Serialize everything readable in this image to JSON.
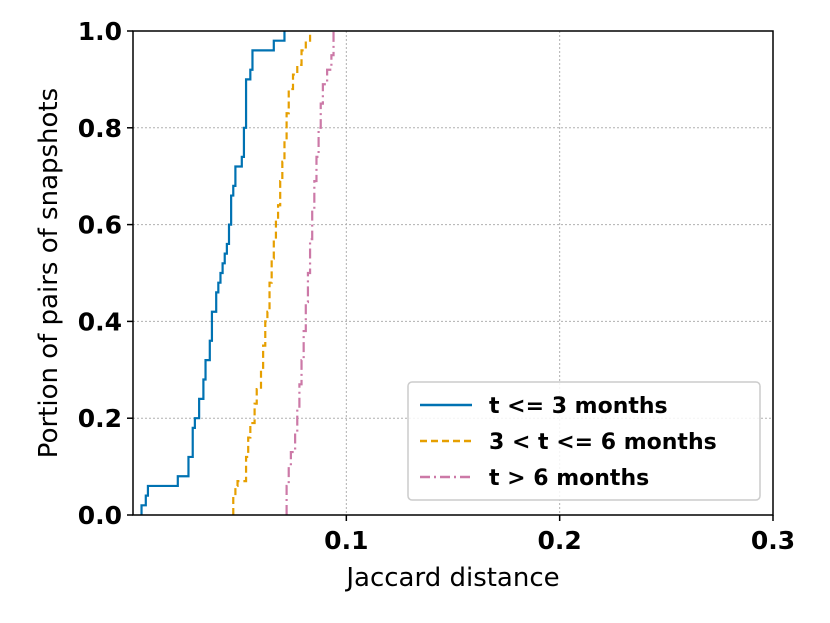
{
  "chart_data": {
    "type": "line",
    "subtype": "step-cdf",
    "title": "",
    "xlabel": "Jaccard distance",
    "ylabel": "Portion of pairs of snapshots",
    "xlim": [
      0.0,
      0.3
    ],
    "ylim": [
      0.0,
      1.0
    ],
    "xticks": [
      0.1,
      0.2,
      0.3
    ],
    "xtick_labels": [
      "0.1",
      "0.2",
      "0.3"
    ],
    "yticks": [
      0.0,
      0.2,
      0.4,
      0.6,
      0.8,
      1.0
    ],
    "ytick_labels": [
      "0.0",
      "0.2",
      "0.4",
      "0.6",
      "0.8",
      "1.0"
    ],
    "grid": true,
    "legend_position": "lower-right",
    "series": [
      {
        "name": "t <= 3 months",
        "color": "#0072b2",
        "dash": "solid",
        "points": [
          [
            0.004,
            0.0
          ],
          [
            0.004,
            0.02
          ],
          [
            0.006,
            0.02
          ],
          [
            0.006,
            0.04
          ],
          [
            0.007,
            0.04
          ],
          [
            0.007,
            0.06
          ],
          [
            0.021,
            0.06
          ],
          [
            0.021,
            0.08
          ],
          [
            0.026,
            0.08
          ],
          [
            0.026,
            0.12
          ],
          [
            0.028,
            0.12
          ],
          [
            0.028,
            0.18
          ],
          [
            0.029,
            0.18
          ],
          [
            0.029,
            0.2
          ],
          [
            0.031,
            0.2
          ],
          [
            0.031,
            0.24
          ],
          [
            0.033,
            0.24
          ],
          [
            0.033,
            0.28
          ],
          [
            0.034,
            0.28
          ],
          [
            0.034,
            0.32
          ],
          [
            0.036,
            0.32
          ],
          [
            0.036,
            0.36
          ],
          [
            0.037,
            0.36
          ],
          [
            0.037,
            0.42
          ],
          [
            0.039,
            0.42
          ],
          [
            0.039,
            0.46
          ],
          [
            0.04,
            0.46
          ],
          [
            0.04,
            0.48
          ],
          [
            0.041,
            0.48
          ],
          [
            0.041,
            0.5
          ],
          [
            0.042,
            0.5
          ],
          [
            0.042,
            0.52
          ],
          [
            0.043,
            0.52
          ],
          [
            0.043,
            0.54
          ],
          [
            0.044,
            0.54
          ],
          [
            0.044,
            0.56
          ],
          [
            0.045,
            0.56
          ],
          [
            0.045,
            0.6
          ],
          [
            0.046,
            0.6
          ],
          [
            0.046,
            0.66
          ],
          [
            0.047,
            0.66
          ],
          [
            0.047,
            0.68
          ],
          [
            0.048,
            0.68
          ],
          [
            0.048,
            0.72
          ],
          [
            0.051,
            0.72
          ],
          [
            0.051,
            0.74
          ],
          [
            0.052,
            0.74
          ],
          [
            0.052,
            0.8
          ],
          [
            0.053,
            0.8
          ],
          [
            0.053,
            0.9
          ],
          [
            0.055,
            0.9
          ],
          [
            0.055,
            0.92
          ],
          [
            0.056,
            0.92
          ],
          [
            0.056,
            0.96
          ],
          [
            0.066,
            0.96
          ],
          [
            0.066,
            0.98
          ],
          [
            0.071,
            0.98
          ],
          [
            0.071,
            1.0
          ]
        ]
      },
      {
        "name": "3 < t <= 6 months",
        "color": "#e69f00",
        "dash": "dashed",
        "points": [
          [
            0.047,
            0.0
          ],
          [
            0.047,
            0.04
          ],
          [
            0.048,
            0.04
          ],
          [
            0.048,
            0.06
          ],
          [
            0.049,
            0.06
          ],
          [
            0.049,
            0.07
          ],
          [
            0.053,
            0.07
          ],
          [
            0.053,
            0.12
          ],
          [
            0.054,
            0.12
          ],
          [
            0.054,
            0.16
          ],
          [
            0.055,
            0.16
          ],
          [
            0.055,
            0.19
          ],
          [
            0.057,
            0.19
          ],
          [
            0.057,
            0.23
          ],
          [
            0.058,
            0.23
          ],
          [
            0.058,
            0.26
          ],
          [
            0.06,
            0.26
          ],
          [
            0.06,
            0.3
          ],
          [
            0.061,
            0.3
          ],
          [
            0.061,
            0.35
          ],
          [
            0.062,
            0.35
          ],
          [
            0.062,
            0.4
          ],
          [
            0.063,
            0.4
          ],
          [
            0.063,
            0.42
          ],
          [
            0.064,
            0.42
          ],
          [
            0.064,
            0.48
          ],
          [
            0.065,
            0.48
          ],
          [
            0.065,
            0.53
          ],
          [
            0.066,
            0.53
          ],
          [
            0.066,
            0.57
          ],
          [
            0.067,
            0.57
          ],
          [
            0.067,
            0.61
          ],
          [
            0.068,
            0.61
          ],
          [
            0.068,
            0.64
          ],
          [
            0.069,
            0.64
          ],
          [
            0.069,
            0.69
          ],
          [
            0.07,
            0.69
          ],
          [
            0.07,
            0.73
          ],
          [
            0.071,
            0.73
          ],
          [
            0.071,
            0.77
          ],
          [
            0.072,
            0.77
          ],
          [
            0.072,
            0.83
          ],
          [
            0.073,
            0.83
          ],
          [
            0.073,
            0.88
          ],
          [
            0.075,
            0.88
          ],
          [
            0.075,
            0.91
          ],
          [
            0.077,
            0.91
          ],
          [
            0.077,
            0.93
          ],
          [
            0.079,
            0.93
          ],
          [
            0.079,
            0.96
          ],
          [
            0.081,
            0.96
          ],
          [
            0.081,
            0.98
          ],
          [
            0.083,
            0.98
          ],
          [
            0.083,
            1.0
          ]
        ]
      },
      {
        "name": "t > 6 months",
        "color": "#cc79a7",
        "dash": "dashdot",
        "points": [
          [
            0.072,
            0.0
          ],
          [
            0.072,
            0.06
          ],
          [
            0.073,
            0.06
          ],
          [
            0.073,
            0.1
          ],
          [
            0.074,
            0.1
          ],
          [
            0.074,
            0.13
          ],
          [
            0.076,
            0.13
          ],
          [
            0.076,
            0.17
          ],
          [
            0.077,
            0.17
          ],
          [
            0.077,
            0.22
          ],
          [
            0.078,
            0.22
          ],
          [
            0.078,
            0.27
          ],
          [
            0.079,
            0.27
          ],
          [
            0.079,
            0.32
          ],
          [
            0.08,
            0.32
          ],
          [
            0.08,
            0.38
          ],
          [
            0.081,
            0.38
          ],
          [
            0.081,
            0.44
          ],
          [
            0.082,
            0.44
          ],
          [
            0.082,
            0.5
          ],
          [
            0.083,
            0.5
          ],
          [
            0.083,
            0.57
          ],
          [
            0.084,
            0.57
          ],
          [
            0.084,
            0.63
          ],
          [
            0.085,
            0.63
          ],
          [
            0.085,
            0.69
          ],
          [
            0.086,
            0.69
          ],
          [
            0.086,
            0.74
          ],
          [
            0.087,
            0.74
          ],
          [
            0.087,
            0.8
          ],
          [
            0.088,
            0.8
          ],
          [
            0.088,
            0.85
          ],
          [
            0.089,
            0.85
          ],
          [
            0.089,
            0.89
          ],
          [
            0.091,
            0.89
          ],
          [
            0.091,
            0.92
          ],
          [
            0.093,
            0.92
          ],
          [
            0.093,
            0.95
          ],
          [
            0.094,
            0.95
          ],
          [
            0.094,
            1.0
          ]
        ]
      }
    ]
  }
}
